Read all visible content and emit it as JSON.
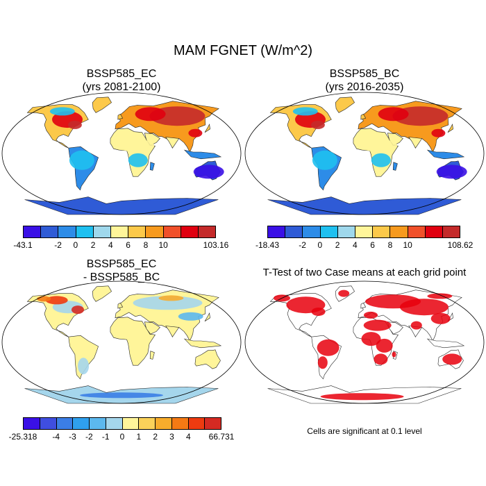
{
  "title": "MAM FGNET (W/m^2)",
  "panels": [
    {
      "id": "ec",
      "title_line1": "BSSP585_EC",
      "title_line2": "(yrs 2081-2100)",
      "colorbar": {
        "colors": [
          "#3a10e6",
          "#2f5bd6",
          "#2d8ce8",
          "#1fc0f0",
          "#9fd8ec",
          "#fff59a",
          "#fcc94a",
          "#f79a1e",
          "#f0502a",
          "#e00010",
          "#c42a2a"
        ],
        "labels": [
          "-43.1",
          "-2",
          "0",
          "2",
          "4",
          "6",
          "8",
          "10",
          "103.16"
        ]
      }
    },
    {
      "id": "bc",
      "title_line1": "BSSP585_BC",
      "title_line2": "(yrs 2016-2035)",
      "colorbar": {
        "colors": [
          "#3a10e6",
          "#2f5bd6",
          "#2d8ce8",
          "#1fc0f0",
          "#9fd8ec",
          "#fff59a",
          "#fcc94a",
          "#f79a1e",
          "#f0502a",
          "#e00010",
          "#c42a2a"
        ],
        "labels": [
          "-18.43",
          "-2",
          "0",
          "2",
          "4",
          "6",
          "8",
          "10",
          "108.62"
        ]
      }
    },
    {
      "id": "diff",
      "title_line1": "BSSP585_EC",
      "title_line2": "- BSSP585_BC",
      "colorbar": {
        "colors": [
          "#3a10e6",
          "#3f4ee0",
          "#3b7ee6",
          "#2fa0ee",
          "#5cb8ee",
          "#a5d6ec",
          "#fff59a",
          "#fbd25a",
          "#f8ac2c",
          "#f47a14",
          "#ee3b10",
          "#d52a22"
        ],
        "labels": [
          "-25.318",
          "-4",
          "-3",
          "-2",
          "-1",
          "0",
          "1",
          "2",
          "3",
          "4",
          "66.731"
        ]
      }
    },
    {
      "id": "ttest",
      "title_line1": "T-Test of two Case means at each grid point",
      "note": "Cells are significant at 0.1 level"
    }
  ]
}
